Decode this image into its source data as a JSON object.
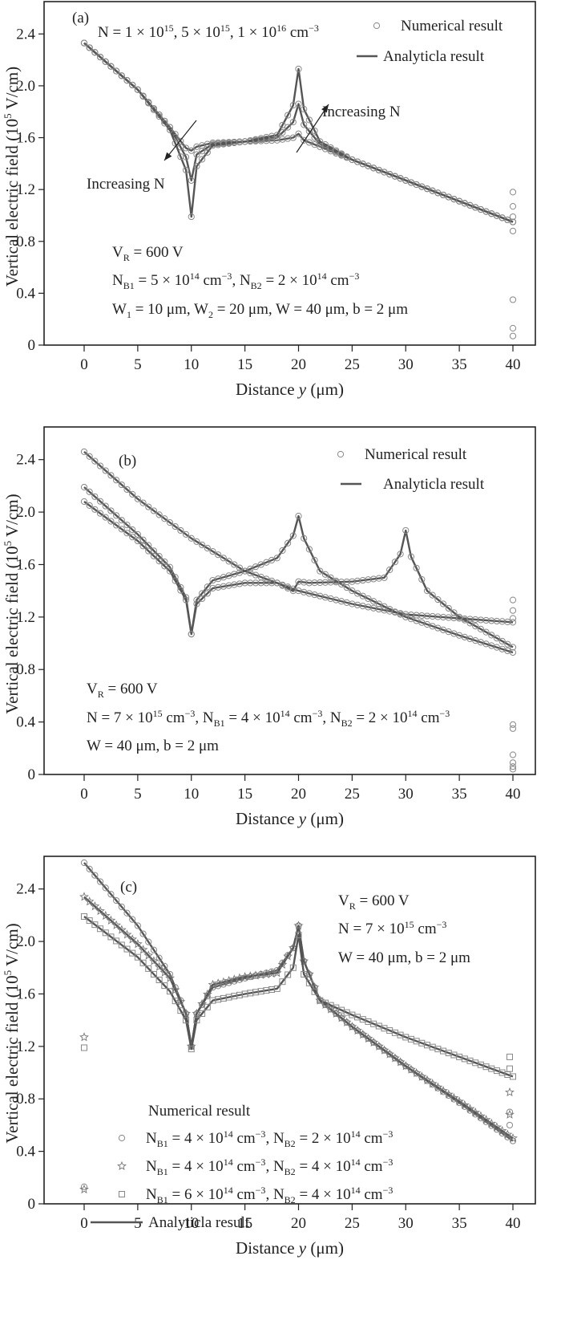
{
  "chart_data": [
    {
      "type": "line",
      "panel_label": "(a)",
      "xlabel": "Distance y (μm)",
      "ylabel": "Vertical electric field (10^5 V/cm)",
      "xlim": [
        0,
        40
      ],
      "ylim": [
        0,
        2.6
      ],
      "xticks": [
        "0",
        "5",
        "10",
        "15",
        "20",
        "25",
        "30",
        "35",
        "40"
      ],
      "yticks": [
        "0",
        "0.4",
        "0.8",
        "1.2",
        "1.6",
        "2.0",
        "2.4"
      ],
      "legend": [
        "Numerical result",
        "Analyticla result"
      ],
      "annotations": [
        "N = 1 × 10^15, 5 × 10^15, 1 × 10^16 cm^−3",
        "Increasing N",
        "Increasing N",
        "V_R = 600 V",
        "N_B1 = 5 × 10^14 cm^−3, N_B2 = 2 × 10^14 cm^−3",
        "W_1 = 10 μm, W_2 = 20 μm, W = 40 μm, b = 2 μm"
      ],
      "series": [
        {
          "values": [
            [
              0,
              2.33
            ],
            [
              5,
              1.97
            ],
            [
              8,
              1.68
            ],
            [
              9.5,
              1.52
            ],
            [
              10,
              1.5
            ],
            [
              10.5,
              1.53
            ],
            [
              12,
              1.56
            ],
            [
              15,
              1.57
            ],
            [
              18,
              1.58
            ],
            [
              19.5,
              1.6
            ],
            [
              20,
              1.63
            ],
            [
              20.5,
              1.58
            ],
            [
              22,
              1.53
            ],
            [
              25,
              1.43
            ],
            [
              30,
              1.27
            ],
            [
              35,
              1.11
            ],
            [
              40,
              0.95
            ]
          ]
        },
        {
          "values": [
            [
              0,
              2.33
            ],
            [
              5,
              1.97
            ],
            [
              8,
              1.68
            ],
            [
              9.5,
              1.45
            ],
            [
              10,
              1.27
            ],
            [
              10.5,
              1.47
            ],
            [
              12,
              1.55
            ],
            [
              15,
              1.57
            ],
            [
              18,
              1.6
            ],
            [
              19.5,
              1.72
            ],
            [
              20,
              1.86
            ],
            [
              20.5,
              1.7
            ],
            [
              22,
              1.55
            ],
            [
              25,
              1.43
            ],
            [
              30,
              1.27
            ],
            [
              35,
              1.11
            ],
            [
              40,
              0.95
            ]
          ]
        },
        {
          "values": [
            [
              0,
              2.33
            ],
            [
              5,
              1.97
            ],
            [
              8,
              1.66
            ],
            [
              9.5,
              1.35
            ],
            [
              10,
              0.99
            ],
            [
              10.5,
              1.38
            ],
            [
              12,
              1.54
            ],
            [
              15,
              1.57
            ],
            [
              18,
              1.62
            ],
            [
              19.5,
              1.85
            ],
            [
              20,
              2.13
            ],
            [
              20.5,
              1.82
            ],
            [
              22,
              1.57
            ],
            [
              25,
              1.43
            ],
            [
              30,
              1.27
            ],
            [
              35,
              1.11
            ],
            [
              40,
              0.95
            ]
          ]
        }
      ]
    },
    {
      "type": "line",
      "panel_label": "(b)",
      "xlabel": "Distance y (μm)",
      "ylabel": "Vertical electric field (10^5 V/cm)",
      "xlim": [
        0,
        40
      ],
      "ylim": [
        0,
        2.6
      ],
      "xticks": [
        "0",
        "5",
        "10",
        "15",
        "20",
        "25",
        "30",
        "35",
        "40"
      ],
      "yticks": [
        "0",
        "0.4",
        "0.8",
        "1.2",
        "1.6",
        "2.0",
        "2.4"
      ],
      "legend": [
        "Numerical result",
        "Analyticla result"
      ],
      "annotations": [
        "V_R = 600 V",
        "N = 7 × 10^15 cm^−3, N_B1 = 4 × 10^14 cm^−3, N_B2 = 2 × 10^14 cm^−3",
        "W = 40 μm, b = 2 μm"
      ],
      "series": [
        {
          "values": [
            [
              0,
              2.46
            ],
            [
              5,
              2.1
            ],
            [
              10,
              1.8
            ],
            [
              15,
              1.55
            ],
            [
              20,
              1.4
            ],
            [
              25,
              1.3
            ],
            [
              30,
              1.22
            ],
            [
              35,
              1.19
            ],
            [
              40,
              1.16
            ]
          ]
        },
        {
          "values": [
            [
              0,
              2.19
            ],
            [
              5,
              1.83
            ],
            [
              8,
              1.58
            ],
            [
              9.5,
              1.35
            ],
            [
              10,
              1.07
            ],
            [
              10.5,
              1.33
            ],
            [
              12,
              1.48
            ],
            [
              15,
              1.55
            ],
            [
              18,
              1.65
            ],
            [
              19.5,
              1.82
            ],
            [
              20,
              1.97
            ],
            [
              20.5,
              1.8
            ],
            [
              22,
              1.55
            ],
            [
              25,
              1.4
            ],
            [
              30,
              1.2
            ],
            [
              35,
              1.06
            ],
            [
              40,
              0.93
            ]
          ]
        },
        {
          "values": [
            [
              0,
              2.08
            ],
            [
              5,
              1.78
            ],
            [
              8,
              1.55
            ],
            [
              9.5,
              1.33
            ],
            [
              10,
              1.07
            ],
            [
              10.5,
              1.3
            ],
            [
              12,
              1.42
            ],
            [
              15,
              1.46
            ],
            [
              18,
              1.46
            ],
            [
              19.5,
              1.4
            ],
            [
              20,
              1.47
            ],
            [
              21,
              1.46
            ],
            [
              25,
              1.47
            ],
            [
              28,
              1.5
            ],
            [
              29.5,
              1.68
            ],
            [
              30,
              1.86
            ],
            [
              30.5,
              1.66
            ],
            [
              32,
              1.4
            ],
            [
              35,
              1.2
            ],
            [
              40,
              0.97
            ]
          ]
        }
      ]
    },
    {
      "type": "line",
      "panel_label": "(c)",
      "xlabel": "Distance y (μm)",
      "ylabel": "Vertical electric field (10^5 V/cm)",
      "xlim": [
        0,
        40
      ],
      "ylim": [
        0,
        2.6
      ],
      "xticks": [
        "0",
        "5",
        "10",
        "15",
        "20",
        "25",
        "30",
        "35",
        "40"
      ],
      "yticks": [
        "0",
        "0.4",
        "0.8",
        "1.2",
        "1.6",
        "2.0",
        "2.4"
      ],
      "legend": [
        "Numerical result",
        "N_B1 = 4 × 10^14 cm^−3, N_B2 = 2 × 10^14 cm^−3",
        "N_B1 = 4 × 10^14 cm^−3, N_B2 = 4 × 10^14 cm^−3",
        "N_B1 = 6 × 10^14 cm^−3, N_B2 = 4 × 10^14 cm^−3",
        "Analyticla result"
      ],
      "annotations": [
        "V_R = 600 V",
        "N = 7 × 10^15 cm^−3",
        "W = 40 μm, b = 2 μm"
      ],
      "series": [
        {
          "name": "N_B1 = 4 × 10^14 cm^−3, N_B2 = 2 × 10^14 cm^−3",
          "marker": "circle",
          "values": [
            [
              0,
              2.6
            ],
            [
              5,
              2.12
            ],
            [
              8,
              1.75
            ],
            [
              9.5,
              1.45
            ],
            [
              10,
              1.2
            ],
            [
              10.5,
              1.45
            ],
            [
              12,
              1.65
            ],
            [
              15,
              1.72
            ],
            [
              18,
              1.78
            ],
            [
              19.5,
              1.95
            ],
            [
              20,
              2.12
            ],
            [
              20.5,
              1.85
            ],
            [
              22,
              1.55
            ],
            [
              25,
              1.35
            ],
            [
              30,
              1.05
            ],
            [
              35,
              0.77
            ],
            [
              40,
              0.48
            ]
          ]
        },
        {
          "name": "N_B1 = 4 × 10^14 cm^−3, N_B2 = 4 × 10^14 cm^−3",
          "marker": "star",
          "values": [
            [
              0,
              2.34
            ],
            [
              5,
              1.98
            ],
            [
              8,
              1.72
            ],
            [
              9.5,
              1.45
            ],
            [
              10,
              1.2
            ],
            [
              10.5,
              1.45
            ],
            [
              12,
              1.67
            ],
            [
              15,
              1.73
            ],
            [
              18,
              1.76
            ],
            [
              19.5,
              1.95
            ],
            [
              20,
              2.12
            ],
            [
              20.5,
              1.85
            ],
            [
              22,
              1.55
            ],
            [
              25,
              1.35
            ],
            [
              30,
              1.05
            ],
            [
              35,
              0.78
            ],
            [
              40,
              0.5
            ]
          ]
        },
        {
          "name": "N_B1 = 6 × 10^14 cm^−3, N_B2 = 4 × 10^14 cm^−3",
          "marker": "square",
          "values": [
            [
              0,
              2.19
            ],
            [
              5,
              1.88
            ],
            [
              8,
              1.62
            ],
            [
              9.5,
              1.4
            ],
            [
              10,
              1.18
            ],
            [
              10.5,
              1.4
            ],
            [
              12,
              1.55
            ],
            [
              15,
              1.6
            ],
            [
              18,
              1.64
            ],
            [
              19.5,
              1.8
            ],
            [
              20,
              2.05
            ],
            [
              20.5,
              1.75
            ],
            [
              22,
              1.55
            ],
            [
              25,
              1.44
            ],
            [
              30,
              1.27
            ],
            [
              35,
              1.12
            ],
            [
              40,
              0.97
            ]
          ]
        }
      ]
    }
  ]
}
